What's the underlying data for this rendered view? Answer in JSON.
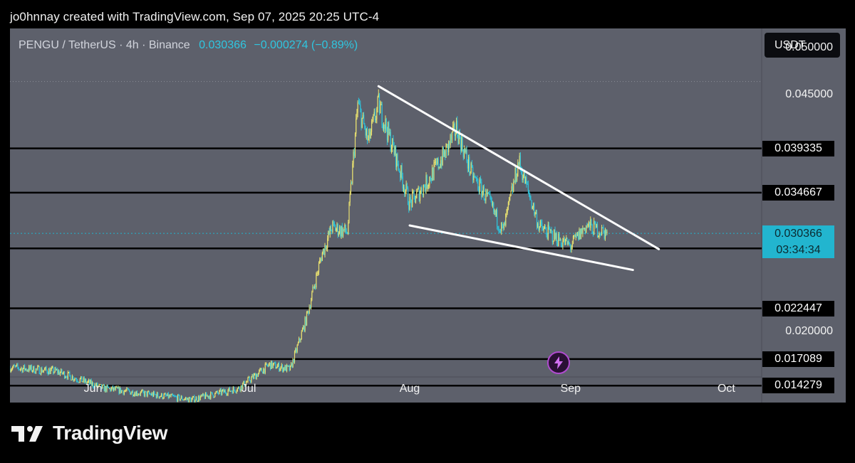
{
  "header": {
    "attribution": "jo0hnnay created with TradingView.com, Sep 07, 2025 20:25 UTC-4"
  },
  "symbol": {
    "name": "PENGU / TetherUS · 4h · Binance",
    "price": "0.030366",
    "change": "−0.000274 (−0.89%)"
  },
  "currency_button": "USDT",
  "price_axis": {
    "ticks": [
      {
        "value": 0.05,
        "label": "0.050000"
      },
      {
        "value": 0.045,
        "label": "0.045000"
      },
      {
        "value": 0.02,
        "label": "0.020000"
      }
    ]
  },
  "levels": [
    {
      "value": 0.039335,
      "label": "0.039335"
    },
    {
      "value": 0.034667,
      "label": "0.034667"
    },
    {
      "value": 0.028781,
      "label": "0.028781"
    },
    {
      "value": 0.022447,
      "label": "0.022447"
    },
    {
      "value": 0.017089,
      "label": "0.017089"
    },
    {
      "value": 0.014279,
      "label": "0.014279"
    }
  ],
  "current": {
    "value": 0.030366,
    "price": "0.030366",
    "countdown": "03:34:34"
  },
  "months": [
    {
      "label": "Jun",
      "date": "2025-06-01"
    },
    {
      "label": "Jul",
      "date": "2025-07-01"
    },
    {
      "label": "Aug",
      "date": "2025-08-01"
    },
    {
      "label": "Sep",
      "date": "2025-09-01"
    },
    {
      "label": "Oct",
      "date": "2025-10-01"
    }
  ],
  "logo": {
    "text": "TradingView"
  },
  "colors": {
    "background": "#5d606b",
    "candle_up": "#e8e070",
    "candle_down": "#2ec4dc",
    "level_line": "#000000",
    "trendline": "#ffffff",
    "current_price": "#22b5cf"
  },
  "chart_data": {
    "type": "candlestick",
    "symbol": "PENGU / TetherUS",
    "interval": "4h",
    "exchange": "Binance",
    "x_range": [
      "2025-05-16",
      "2025-10-24"
    ],
    "ylim": [
      0.0125,
      0.052
    ],
    "series": [
      {
        "name": "PENGU / TetherUS",
        "points": [
          {
            "x": "2025-05-16",
            "y": 0.0162
          },
          {
            "x": "2025-05-25",
            "y": 0.0158
          },
          {
            "x": "2025-06-03",
            "y": 0.014
          },
          {
            "x": "2025-06-20",
            "y": 0.0128
          },
          {
            "x": "2025-06-29",
            "y": 0.014
          },
          {
            "x": "2025-07-05",
            "y": 0.0165
          },
          {
            "x": "2025-07-09",
            "y": 0.016
          },
          {
            "x": "2025-07-12",
            "y": 0.0212
          },
          {
            "x": "2025-07-15",
            "y": 0.028
          },
          {
            "x": "2025-07-17",
            "y": 0.031
          },
          {
            "x": "2025-07-20",
            "y": 0.0305
          },
          {
            "x": "2025-07-22",
            "y": 0.044
          },
          {
            "x": "2025-07-24",
            "y": 0.04
          },
          {
            "x": "2025-07-26",
            "y": 0.044
          },
          {
            "x": "2025-07-29",
            "y": 0.039
          },
          {
            "x": "2025-08-01",
            "y": 0.0335
          },
          {
            "x": "2025-08-04",
            "y": 0.0355
          },
          {
            "x": "2025-08-08",
            "y": 0.039
          },
          {
            "x": "2025-08-10",
            "y": 0.0415
          },
          {
            "x": "2025-08-13",
            "y": 0.0365
          },
          {
            "x": "2025-08-16",
            "y": 0.034
          },
          {
            "x": "2025-08-19",
            "y": 0.0305
          },
          {
            "x": "2025-08-22",
            "y": 0.038
          },
          {
            "x": "2025-08-26",
            "y": 0.031
          },
          {
            "x": "2025-08-29",
            "y": 0.03
          },
          {
            "x": "2025-09-01",
            "y": 0.029
          },
          {
            "x": "2025-09-04",
            "y": 0.0312
          },
          {
            "x": "2025-09-08",
            "y": 0.0304
          }
        ]
      }
    ],
    "horizontal_levels": [
      0.039335,
      0.034667,
      0.028781,
      0.022447,
      0.017089,
      0.014279
    ],
    "trendlines": [
      {
        "from": {
          "x": "2025-07-26",
          "y": 0.0459
        },
        "to": {
          "x": "2025-09-18",
          "y": 0.0287
        }
      },
      {
        "from": {
          "x": "2025-08-01",
          "y": 0.0312
        },
        "to": {
          "x": "2025-09-13",
          "y": 0.0265
        }
      }
    ],
    "current_price": 0.030366
  }
}
